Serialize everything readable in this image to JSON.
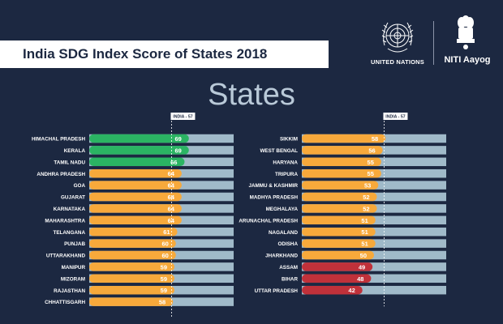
{
  "header": {
    "title": "India SDG Index Score of States 2018",
    "un_label": "UNITED NATIONS",
    "niti_label": "NITI Aayog",
    "heading": "States"
  },
  "chart_data": {
    "type": "bar",
    "title": "India SDG Index Score of States 2018",
    "xlim": [
      0,
      100
    ],
    "reference": {
      "label": "INDIA - 57",
      "value": 57
    },
    "colors": {
      "front_runner": "#2bb463",
      "performer": "#f7a93b",
      "aspirant": "#c0313a",
      "track": "#a0bac9"
    },
    "series": [
      {
        "name": "States (left)",
        "categories": [
          "HIMACHAL PRADESH",
          "KERALA",
          "TAMIL NADU",
          "ANDHRA PRADESH",
          "GOA",
          "GUJARAT",
          "KARNATAKA",
          "MAHARASHTRA",
          "TELANGANA",
          "PUNJAB",
          "UTTARAKHAND",
          "MANIPUR",
          "MIZORAM",
          "RAJASTHAN",
          "CHHATTISGARH"
        ],
        "values": [
          69,
          69,
          66,
          64,
          64,
          64,
          64,
          64,
          61,
          60,
          60,
          59,
          59,
          59,
          58
        ]
      },
      {
        "name": "States (right)",
        "categories": [
          "SIKKIM",
          "WEST BENGAL",
          "HARYANA",
          "TRIPURA",
          "JAMMU & KASHMIR",
          "MADHYA PRADESH",
          "MEGHALAYA",
          "ARUNACHAL PRADESH",
          "NAGALAND",
          "ODISHA",
          "JHARKHAND",
          "ASSAM",
          "BIHAR",
          "UTTAR PRADESH"
        ],
        "values": [
          58,
          56,
          55,
          55,
          53,
          52,
          52,
          51,
          51,
          51,
          50,
          49,
          48,
          42
        ]
      }
    ]
  }
}
